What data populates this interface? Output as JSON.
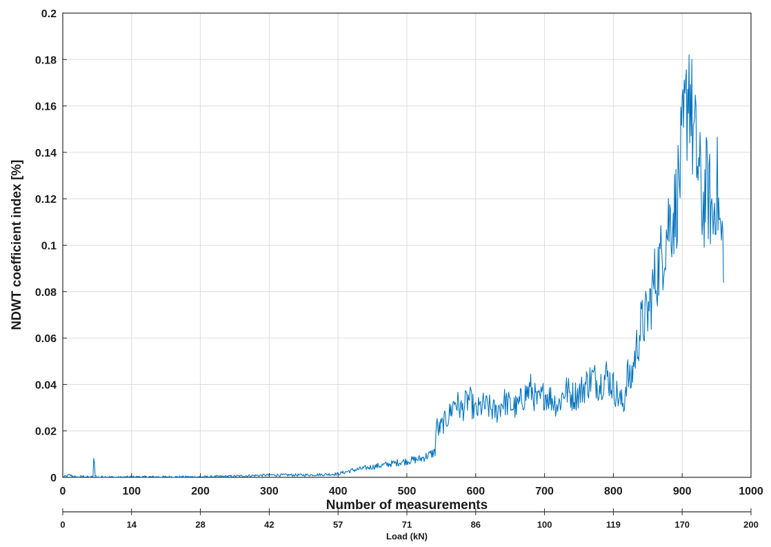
{
  "chart_data": {
    "type": "line",
    "title": "",
    "xlabel": "Number of measurements",
    "ylabel": "NDWT coefficient index [%]",
    "secondary_xlabel": "Load (kN)",
    "xlim": [
      0,
      1000
    ],
    "ylim": [
      0,
      0.2
    ],
    "x_ticks": [
      "0",
      "100",
      "200",
      "300",
      "400",
      "500",
      "600",
      "700",
      "800",
      "900",
      "1000"
    ],
    "y_ticks": [
      "0",
      "0.02",
      "0.04",
      "0.06",
      "0.08",
      "0.1",
      "0.12",
      "0.14",
      "0.16",
      "0.18",
      "0.2"
    ],
    "secondary_x_ticks": [
      "0",
      "14",
      "28",
      "42",
      "57",
      "71",
      "86",
      "100",
      "119",
      "170",
      "200"
    ],
    "grid": true,
    "series_color": "#0072BD",
    "series": [
      {
        "x": [
          0,
          10,
          20,
          30,
          40,
          44,
          45,
          46,
          47,
          50,
          60,
          80,
          100,
          150,
          200,
          250,
          300,
          350,
          380,
          400,
          420,
          440,
          460,
          480,
          500,
          520,
          535,
          541,
          543,
          545,
          550,
          560,
          570,
          580,
          590,
          600,
          610,
          620,
          630,
          640,
          650,
          660,
          670,
          680,
          690,
          700,
          710,
          720,
          730,
          740,
          750,
          760,
          770,
          780,
          790,
          800,
          810,
          815,
          820,
          825,
          830,
          840,
          850,
          860,
          870,
          880,
          890,
          900,
          905,
          910,
          915,
          920,
          925,
          930,
          935,
          940,
          945,
          950,
          955,
          960
        ],
        "y": [
          0,
          0.001,
          0,
          0.0005,
          0,
          0.0005,
          0.007,
          0.006,
          0.001,
          0,
          0.0003,
          0,
          0.0002,
          0.0002,
          0.0002,
          0.0005,
          0.001,
          0.001,
          0.0012,
          0.0015,
          0.003,
          0.004,
          0.005,
          0.006,
          0.007,
          0.008,
          0.01,
          0.011,
          0.024,
          0.02,
          0.022,
          0.026,
          0.033,
          0.029,
          0.034,
          0.028,
          0.031,
          0.03,
          0.028,
          0.033,
          0.031,
          0.03,
          0.035,
          0.038,
          0.032,
          0.036,
          0.034,
          0.031,
          0.038,
          0.035,
          0.036,
          0.04,
          0.043,
          0.04,
          0.044,
          0.039,
          0.033,
          0.031,
          0.045,
          0.04,
          0.05,
          0.065,
          0.07,
          0.085,
          0.095,
          0.11,
          0.115,
          0.14,
          0.155,
          0.175,
          0.15,
          0.14,
          0.13,
          0.115,
          0.125,
          0.12,
          0.11,
          0.13,
          0.105,
          0.1
        ]
      }
    ]
  }
}
